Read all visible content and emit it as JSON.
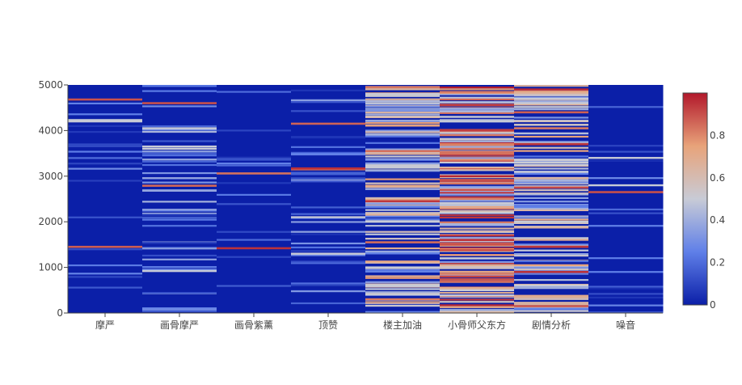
{
  "chart_data": {
    "type": "heatmap",
    "title": "",
    "xlabel": "",
    "ylabel": "",
    "categories": [
      "摩严",
      "画骨摩严",
      "画骨紫薰",
      "顶赞",
      "楼主加油",
      "小骨师父东方",
      "剧情分析",
      "噪音"
    ],
    "ylim": [
      0,
      5000
    ],
    "yticks": [
      0,
      1000,
      2000,
      3000,
      4000,
      5000
    ],
    "colorbar": {
      "range": [
        0,
        1
      ],
      "ticks": [
        0,
        0.2,
        0.4,
        0.6,
        0.8
      ],
      "tick_labels": [
        "0",
        "0.2",
        "0.4",
        "0.6",
        "0.8"
      ],
      "colorscale": [
        "#0b1fa8",
        "#5f7fe8",
        "#c8cbd6",
        "#e8a37a",
        "#b2182b"
      ]
    },
    "series": [
      {
        "category": "摩严",
        "rows_total": 5000,
        "mean_intensity": 0.03,
        "high_rows": [
          1450,
          4680
        ],
        "med_rows": [
          4200,
          4230
        ]
      },
      {
        "category": "画骨摩严",
        "rows_total": 5000,
        "mean_intensity": 0.12,
        "high_rows": [
          2790,
          4600
        ],
        "med_rows": [
          920,
          3600,
          3650,
          4050
        ]
      },
      {
        "category": "画骨紫薰",
        "rows_total": 5000,
        "mean_intensity": 0.02,
        "high_rows": [
          3060,
          1420
        ],
        "med_rows": []
      },
      {
        "category": "顶赞",
        "rows_total": 5000,
        "mean_intensity": 0.08,
        "high_rows": [
          3150,
          3170,
          4150
        ],
        "med_rows": [
          1300,
          2100
        ]
      },
      {
        "category": "楼主加油",
        "rows_total": 5000,
        "mean_intensity": 0.35,
        "high_rows": [
          4950,
          3550,
          2450,
          1550,
          300
        ],
        "med_rows": [
          4800,
          4600,
          3200,
          2000,
          1000,
          600
        ]
      },
      {
        "category": "小骨师父东方",
        "rows_total": 5000,
        "mean_intensity": 0.52,
        "high_rows": [
          4000,
          3900,
          3700,
          3600,
          3500,
          2900,
          2700,
          1700,
          1600,
          1500,
          800,
          700
        ],
        "med_rows": [
          4300,
          4200,
          2400,
          2200,
          1200,
          500
        ]
      },
      {
        "category": "剧情分析",
        "rows_total": 5000,
        "mean_intensity": 0.35,
        "high_rows": [
          4900,
          4400,
          4050,
          3700,
          2750,
          1450,
          900,
          150
        ],
        "med_rows": [
          4700,
          4600,
          3300,
          3250,
          2000,
          600
        ]
      },
      {
        "category": "噪音",
        "rows_total": 5000,
        "mean_intensity": 0.03,
        "high_rows": [
          2650
        ],
        "med_rows": [
          2800,
          3400
        ]
      }
    ]
  }
}
